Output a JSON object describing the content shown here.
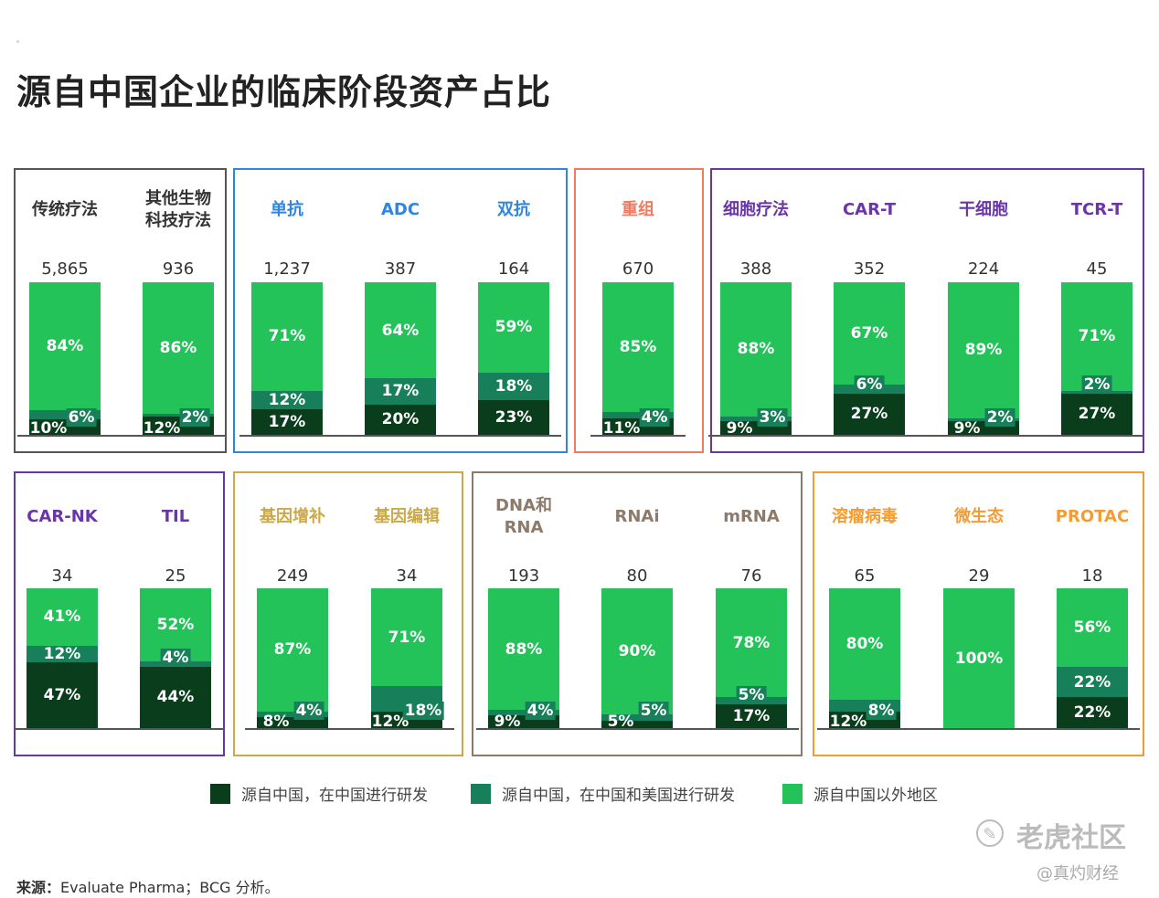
{
  "title": "源自中国企业的临床阶段资产占比",
  "colors": {
    "local": "#0a3d1c",
    "both": "#17805a",
    "outside": "#24c35a",
    "gray": "#555555",
    "blue": "#2e86de",
    "red": "#f07b5f",
    "purple": "#6a35a8",
    "gold": "#c9a94a",
    "taupe": "#8c7a6b",
    "orange": "#f39c33"
  },
  "legend": [
    {
      "label": "源自中国，在中国进行研发",
      "color": "#0a3d1c"
    },
    {
      "label": "源自中国，在中国和美国进行研发",
      "color": "#17805a"
    },
    {
      "label": "源自中国以外地区",
      "color": "#24c35a"
    }
  ],
  "source": {
    "prefix": "来源：",
    "text": "Evaluate Pharma；BCG 分析。"
  },
  "watermark": {
    "brand": "老虎社区",
    "handle": "@真灼财经",
    "icon": "tiger-logo-icon"
  },
  "chart_data": {
    "type": "bar",
    "stacked": true,
    "percent": true,
    "series_names": [
      "源自中国，在中国进行研发",
      "源自中国，在中国和美国进行研发",
      "源自中国以外地区"
    ],
    "groups": [
      {
        "color": "gray",
        "categories": [
          {
            "label": "传统疗法",
            "count": "5,865",
            "local": 10,
            "both": 6,
            "outside": 84
          },
          {
            "label": "其他生物\n科技疗法",
            "count": "936",
            "local": 12,
            "both": 2,
            "outside": 86
          }
        ]
      },
      {
        "color": "blue",
        "categories": [
          {
            "label": "单抗",
            "count": "1,237",
            "local": 17,
            "both": 12,
            "outside": 71
          },
          {
            "label": "ADC",
            "count": "387",
            "local": 20,
            "both": 17,
            "outside": 64
          },
          {
            "label": "双抗",
            "count": "164",
            "local": 23,
            "both": 18,
            "outside": 59
          }
        ]
      },
      {
        "color": "red",
        "categories": [
          {
            "label": "重组",
            "count": "670",
            "local": 11,
            "both": 4,
            "outside": 85
          }
        ]
      },
      {
        "color": "purple",
        "categories": [
          {
            "label": "细胞疗法",
            "count": "388",
            "local": 9,
            "both": 3,
            "outside": 88
          },
          {
            "label": "CAR-T",
            "count": "352",
            "local": 27,
            "both": 6,
            "outside": 67
          },
          {
            "label": "干细胞",
            "count": "224",
            "local": 9,
            "both": 2,
            "outside": 89
          },
          {
            "label": "TCR-T",
            "count": "45",
            "local": 27,
            "both": 2,
            "outside": 71
          }
        ]
      },
      {
        "color": "purple",
        "categories": [
          {
            "label": "CAR-NK",
            "count": "34",
            "local": 47,
            "both": 12,
            "outside": 41
          },
          {
            "label": "TIL",
            "count": "25",
            "local": 44,
            "both": 4,
            "outside": 52
          }
        ]
      },
      {
        "color": "gold",
        "categories": [
          {
            "label": "基因增补",
            "count": "249",
            "local": 8,
            "both": 4,
            "outside": 87
          },
          {
            "label": "基因编辑",
            "count": "34",
            "local": 12,
            "both": 18,
            "outside": 71
          }
        ]
      },
      {
        "color": "taupe",
        "categories": [
          {
            "label": "DNA和\nRNA",
            "count": "193",
            "local": 9,
            "both": 4,
            "outside": 88
          },
          {
            "label": "RNAi",
            "count": "80",
            "local": 5,
            "both": 5,
            "outside": 90
          },
          {
            "label": "mRNA",
            "count": "76",
            "local": 17,
            "both": 5,
            "outside": 78
          }
        ]
      },
      {
        "color": "orange",
        "categories": [
          {
            "label": "溶瘤病毒",
            "count": "65",
            "local": 12,
            "both": 8,
            "outside": 80
          },
          {
            "label": "微生态",
            "count": "29",
            "local": 0,
            "both": 0,
            "outside": 100
          },
          {
            "label": "PROTAC",
            "count": "18",
            "local": 22,
            "both": 22,
            "outside": 56
          }
        ]
      }
    ]
  }
}
